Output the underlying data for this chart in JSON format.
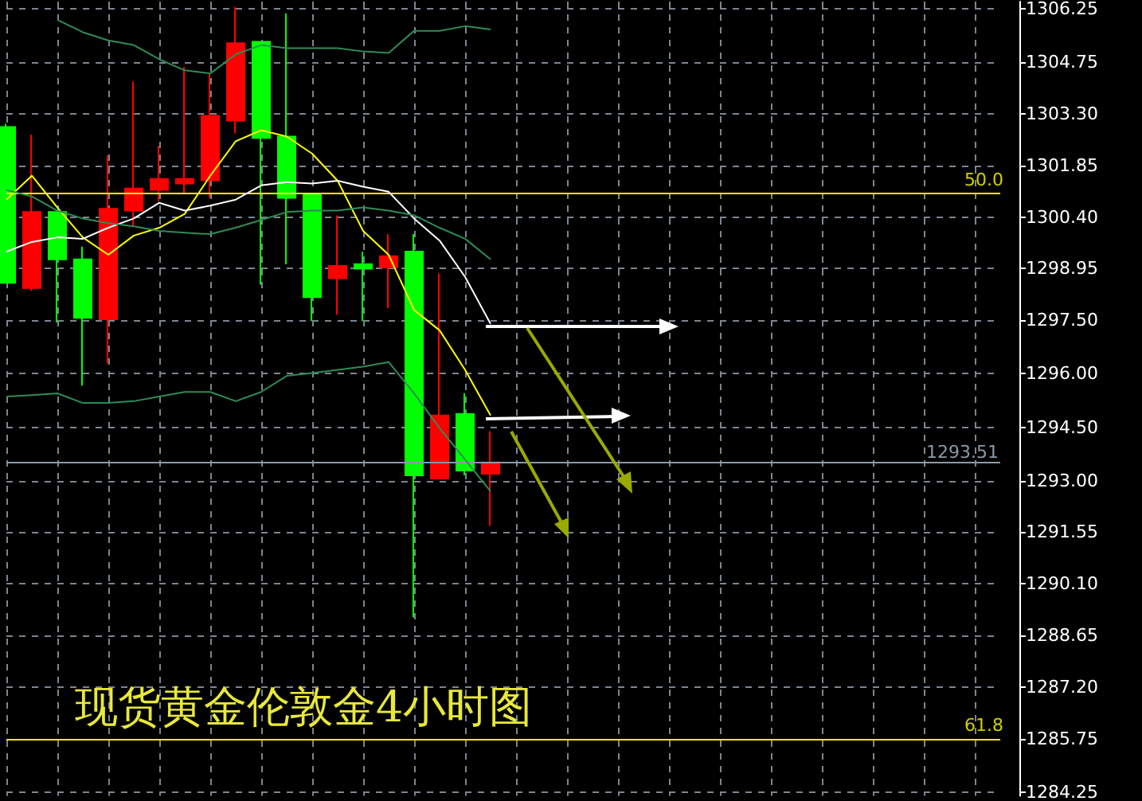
{
  "chart_data": {
    "type": "candlestick",
    "title": "现货黄金伦敦金4小时图",
    "categories": [
      null,
      null,
      null,
      null,
      null,
      null,
      null,
      null,
      null,
      null,
      null,
      null,
      null,
      null,
      null,
      null,
      null,
      null,
      null,
      null,
      null,
      null,
      null,
      null,
      null,
      null,
      null,
      null,
      null,
      null,
      null,
      null,
      null,
      null,
      null,
      null,
      null,
      null,
      null,
      null
    ],
    "ylim": [
      1284.15,
      1306.45
    ],
    "yticks": [
      1306.25,
      1304.75,
      {
        "value": 1303.3,
        "label": "1303.30"
      },
      1301.85,
      {
        "value": 1300.4,
        "label": "1300.40"
      },
      1298.95,
      {
        "value": 1297.5,
        "label": "1297.50"
      },
      {
        "value": 1296,
        "label": "1296.00"
      },
      {
        "value": 1294.5,
        "label": "1294.50"
      },
      {
        "value": 1293,
        "label": "1293.00"
      },
      1291.55,
      {
        "value": 1290.1,
        "label": "1290.10"
      },
      1288.65,
      {
        "value": 1287.2,
        "label": "1287.20"
      },
      1285.75,
      1284.25
    ],
    "grid": true,
    "annotations": [
      {
        "text": "50.0",
        "y": 1301.07
      },
      {
        "text": "61.8",
        "y": 1285.75
      }
    ],
    "ref_lines": [
      {
        "axis": "y",
        "value": 1301.07,
        "color": "#ffff00"
      },
      {
        "axis": "y",
        "value": 1285.75,
        "color": "#ffff00"
      },
      {
        "axis": "y",
        "value": 1293.51,
        "label": "1293.51",
        "color": "#8a9aa8"
      }
    ],
    "series": [
      {
        "type": "candlestick",
        "ohlc": [
          [
            1302.93,
            1303.02,
            1298.55,
            1298.55
          ],
          [
            1298.41,
            1302.71,
            1298.33,
            1300.54
          ],
          [
            1300.54,
            1300.54,
            1297.44,
            1299.21
          ],
          [
            1299.21,
            1299.57,
            1295.67,
            1297.57
          ],
          [
            1297.53,
            1302.13,
            1296.29,
            1300.63
          ],
          [
            1300.58,
            1304.21,
            1300.14,
            1301.2
          ],
          [
            1301.16,
            1302.4,
            1300.85,
            1301.47
          ],
          [
            1301.34,
            1304.61,
            1301.07,
            1301.47
          ],
          [
            1301.43,
            1304.44,
            1300.94,
            1303.24
          ],
          [
            1303.11,
            1306.3,
            1302.75,
            1305.28
          ],
          [
            1305.32,
            1305.32,
            1298.5,
            1302.62
          ],
          [
            1302.66,
            1306.12,
            1299.08,
            1300.94
          ],
          [
            1301.03,
            1301.03,
            1297.48,
            1298.15
          ],
          [
            1298.68,
            1300.45,
            1297.66,
            1299.03
          ],
          [
            1299.08,
            1299.43,
            1297.48,
            1298.95
          ],
          [
            1298.99,
            1299.92,
            1297.84,
            1299.3
          ],
          [
            1299.43,
            1299.92,
            1289.16,
            1293.15
          ],
          [
            1293.06,
            1298.81,
            1293.06,
            1294.83
          ],
          [
            1294.87,
            1295.45,
            1293.15,
            1293.28
          ],
          [
            1293.19,
            1294.39,
            1291.73,
            1293.51
          ],
          null,
          null,
          null,
          null,
          null,
          null,
          null,
          null,
          null,
          null,
          null,
          null,
          null,
          null,
          null,
          null,
          null,
          null,
          null,
          null
        ],
        "colors": [
          "#00ff00",
          "#ff0000",
          "#00ff00",
          "#00ff00",
          "#ff0000",
          "#ff0000",
          "#ff0000",
          "#ff0000",
          "#ff0000",
          "#ff0000",
          "#00ff00",
          "#00ff00",
          "#00ff00",
          "#ff0000",
          "#00ff00",
          "#ff0000",
          "#00ff00",
          "#ff0000",
          "#00ff00",
          "#ff0000",
          null,
          null,
          null,
          null,
          null,
          null,
          null,
          null,
          null,
          null,
          null,
          null,
          null,
          null,
          null,
          null,
          null,
          null,
          null,
          null
        ]
      },
      {
        "type": "line",
        "color": "#ffff00",
        "values": [
          1300.89,
          1301.56,
          1300.67,
          1299.83,
          1299.34,
          1299.88,
          1300.1,
          1300.49,
          1301.56,
          1302.53,
          1302.84,
          1302.66,
          1302.18,
          1301.42,
          1300.01,
          1299.34,
          1297.79,
          1297.22,
          1296.11,
          1294.83,
          null,
          null,
          null,
          null,
          null,
          null,
          null,
          null,
          null,
          null,
          null,
          null,
          null,
          null,
          null,
          null,
          null,
          null,
          null,
          null
        ]
      },
      {
        "type": "line",
        "color": "#ffffff",
        "values": [
          1299.43,
          1299.7,
          1299.83,
          1299.79,
          1300.1,
          1300.36,
          1300.8,
          1300.58,
          1300.72,
          1300.89,
          1301.29,
          1301.38,
          1301.34,
          1301.42,
          1301.25,
          1301.11,
          1300.36,
          1299.74,
          1298.72,
          1297.4,
          null,
          null,
          null,
          null,
          null,
          null,
          null,
          null,
          null,
          null,
          null,
          null,
          null,
          null,
          null,
          null,
          null,
          null,
          null,
          null
        ]
      },
      {
        "type": "line",
        "color": "#2e8b57",
        "values": [
          null,
          null,
          1305.94,
          1305.59,
          1305.36,
          1305.23,
          1304.83,
          1304.52,
          1304.43,
          1304.97,
          1305.23,
          1305.14,
          1305.14,
          1305.14,
          1305.05,
          1305.01,
          1305.63,
          1305.63,
          1305.76,
          1305.67,
          null,
          null,
          null,
          null,
          null,
          null,
          null,
          null,
          null,
          null,
          null,
          null,
          null,
          null,
          null,
          null,
          null,
          null,
          null,
          null
        ]
      },
      {
        "type": "line",
        "color": "#2e8b57",
        "values": [
          1301.16,
          1300.98,
          1300.58,
          1300.36,
          1300.23,
          1300.14,
          1300.01,
          1299.96,
          1299.92,
          1300.1,
          1300.32,
          1300.54,
          1300.58,
          1300.58,
          1300.67,
          1300.58,
          1300.45,
          1300.1,
          1299.79,
          1299.21,
          null,
          null,
          null,
          null,
          null,
          null,
          null,
          null,
          null,
          null,
          null,
          null,
          null,
          null,
          null,
          null,
          null,
          null,
          null,
          null
        ]
      },
      {
        "type": "line",
        "color": "#2e8b57",
        "values": [
          1295.36,
          1295.4,
          1295.45,
          1295.18,
          1295.18,
          1295.23,
          1295.36,
          1295.49,
          1295.49,
          1295.23,
          1295.49,
          1295.94,
          1296.02,
          1296.11,
          1296.2,
          1296.33,
          1295.45,
          1294.47,
          1293.59,
          1292.7,
          null,
          null,
          null,
          null,
          null,
          null,
          null,
          null,
          null,
          null,
          null,
          null,
          null,
          null,
          null,
          null,
          null,
          null,
          null,
          null
        ]
      }
    ]
  }
}
